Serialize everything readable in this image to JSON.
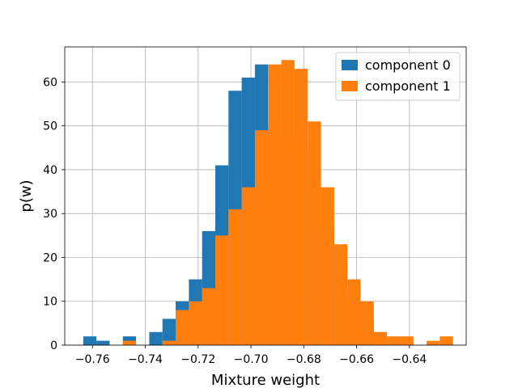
{
  "chart_data": {
    "type": "bar",
    "xlabel": "Mixture weight",
    "ylabel": "p(w)",
    "xlim": [
      -0.7705,
      -0.6185
    ],
    "ylim": [
      0,
      68
    ],
    "grid": true,
    "legend_position": "top-right",
    "x_ticks": [
      -0.76,
      -0.74,
      -0.72,
      -0.7,
      -0.68,
      -0.66,
      -0.64
    ],
    "x_tick_labels": [
      "−0.76",
      "−0.74",
      "−0.72",
      "−0.70",
      "−0.68",
      "−0.66",
      "−0.64"
    ],
    "y_ticks": [
      0,
      10,
      20,
      30,
      40,
      50,
      60
    ],
    "y_tick_labels": [
      "0",
      "10",
      "20",
      "30",
      "40",
      "50",
      "60"
    ],
    "series": [
      {
        "name": "component 0",
        "color": "#1f77b4",
        "bins": [
          {
            "x0": -0.7635,
            "x1": -0.7585,
            "y": 2
          },
          {
            "x0": -0.7585,
            "x1": -0.7535,
            "y": 1
          },
          {
            "x0": -0.7485,
            "x1": -0.7435,
            "y": 2
          },
          {
            "x0": -0.7385,
            "x1": -0.7335,
            "y": 3
          },
          {
            "x0": -0.7335,
            "x1": -0.7285,
            "y": 6
          },
          {
            "x0": -0.7285,
            "x1": -0.7235,
            "y": 10
          },
          {
            "x0": -0.7235,
            "x1": -0.7185,
            "y": 15
          },
          {
            "x0": -0.7185,
            "x1": -0.7135,
            "y": 26
          },
          {
            "x0": -0.7135,
            "x1": -0.7085,
            "y": 41
          },
          {
            "x0": -0.7085,
            "x1": -0.7035,
            "y": 58
          },
          {
            "x0": -0.7035,
            "x1": -0.6985,
            "y": 61
          },
          {
            "x0": -0.6985,
            "x1": -0.6935,
            "y": 64
          },
          {
            "x0": -0.6935,
            "x1": -0.6885,
            "y": 50
          },
          {
            "x0": -0.6885,
            "x1": -0.6835,
            "y": 48
          },
          {
            "x0": -0.6835,
            "x1": -0.6785,
            "y": 45
          },
          {
            "x0": -0.6785,
            "x1": -0.6735,
            "y": 36
          },
          {
            "x0": -0.6735,
            "x1": -0.6685,
            "y": 27
          },
          {
            "x0": -0.6685,
            "x1": -0.6635,
            "y": 13
          },
          {
            "x0": -0.6635,
            "x1": -0.6585,
            "y": 9
          },
          {
            "x0": -0.6585,
            "x1": -0.6535,
            "y": 6
          },
          {
            "x0": -0.6535,
            "x1": -0.6485,
            "y": 2
          },
          {
            "x0": -0.6435,
            "x1": -0.6385,
            "y": 1
          }
        ]
      },
      {
        "name": "component 1",
        "color": "#ff7f0e",
        "bins": [
          {
            "x0": -0.7485,
            "x1": -0.7435,
            "y": 1
          },
          {
            "x0": -0.7335,
            "x1": -0.7285,
            "y": 1
          },
          {
            "x0": -0.7285,
            "x1": -0.7235,
            "y": 8
          },
          {
            "x0": -0.7235,
            "x1": -0.7185,
            "y": 10
          },
          {
            "x0": -0.7185,
            "x1": -0.7135,
            "y": 13
          },
          {
            "x0": -0.7135,
            "x1": -0.7085,
            "y": 25
          },
          {
            "x0": -0.7085,
            "x1": -0.7035,
            "y": 31
          },
          {
            "x0": -0.7035,
            "x1": -0.6985,
            "y": 36
          },
          {
            "x0": -0.6985,
            "x1": -0.6935,
            "y": 49
          },
          {
            "x0": -0.6935,
            "x1": -0.6885,
            "y": 64
          },
          {
            "x0": -0.6885,
            "x1": -0.6835,
            "y": 65
          },
          {
            "x0": -0.6835,
            "x1": -0.6785,
            "y": 63
          },
          {
            "x0": -0.6785,
            "x1": -0.6735,
            "y": 51
          },
          {
            "x0": -0.6735,
            "x1": -0.6685,
            "y": 36
          },
          {
            "x0": -0.6685,
            "x1": -0.6635,
            "y": 23
          },
          {
            "x0": -0.6635,
            "x1": -0.6585,
            "y": 15
          },
          {
            "x0": -0.6585,
            "x1": -0.6535,
            "y": 10
          },
          {
            "x0": -0.6535,
            "x1": -0.6485,
            "y": 3
          },
          {
            "x0": -0.6485,
            "x1": -0.6435,
            "y": 2
          },
          {
            "x0": -0.6435,
            "x1": -0.6385,
            "y": 2
          },
          {
            "x0": -0.6335,
            "x1": -0.6285,
            "y": 1
          },
          {
            "x0": -0.6285,
            "x1": -0.6235,
            "y": 2
          }
        ]
      }
    ]
  }
}
